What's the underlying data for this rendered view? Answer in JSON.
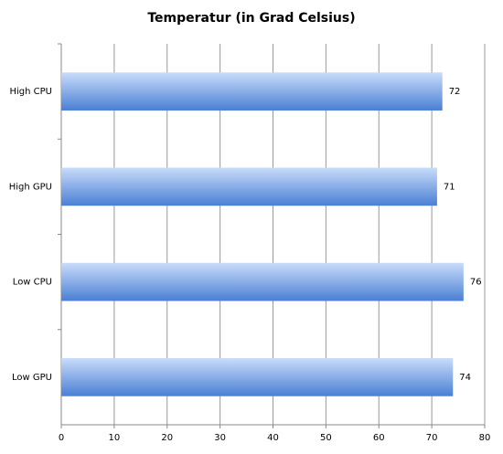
{
  "chart_data": {
    "type": "barh",
    "title": "Temperatur (in Grad Celsius)",
    "categories": [
      "High CPU",
      "High GPU",
      "Low CPU",
      "Low GPU"
    ],
    "values": [
      72,
      71,
      76,
      74
    ],
    "color": "#4a7fd4",
    "xlim": [
      0,
      80
    ],
    "xticks": [
      0,
      10,
      20,
      30,
      40,
      50,
      60,
      70,
      80
    ],
    "grid": true
  }
}
